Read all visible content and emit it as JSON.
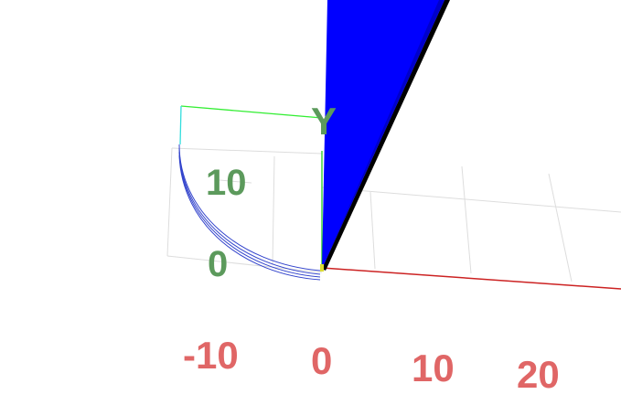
{
  "viewer": {
    "axis_colors": {
      "x": "#cc2222",
      "y": "#22cc22",
      "z": "#2222cc"
    },
    "label_colors": {
      "x_ticks": "#e06666",
      "y_ticks": "#5c9a5c"
    },
    "surface_color": "#0000ff",
    "edge_color": "#000000",
    "grid_color": "#dddddd",
    "x_tick_labels": [
      "-10",
      "0",
      "10",
      "20"
    ],
    "y_tick_labels": [
      "0",
      "10"
    ],
    "y_axis_name": "Y",
    "curve_color": "#3344cc"
  }
}
